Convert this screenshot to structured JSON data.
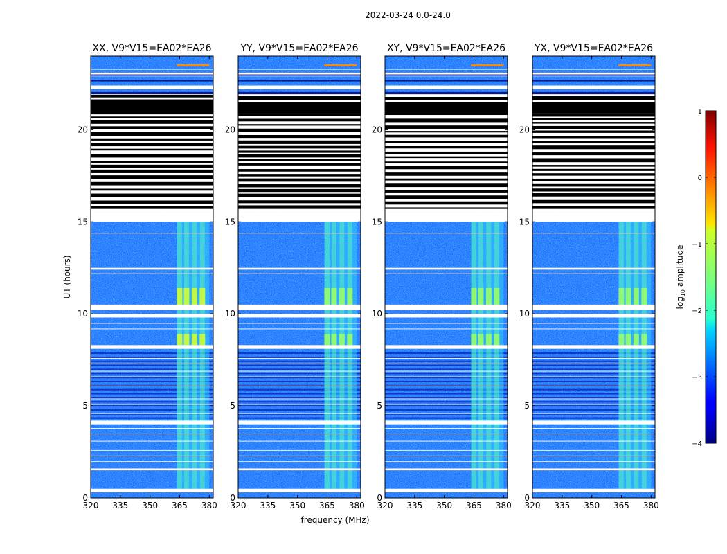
{
  "figure_title": "2022-03-24 0.0-24.0",
  "chart_data": [
    {
      "type": "heatmap",
      "title": "XX, V9*V15=EA02*EA26",
      "xlabel": "",
      "ylabel": "UT (hours)",
      "xlim": [
        320,
        382
      ],
      "ylim": [
        0,
        24
      ],
      "xticks": [
        320,
        335,
        350,
        365,
        380
      ],
      "yticks": [
        0,
        5,
        10,
        15,
        20
      ],
      "active_band_mhz": [
        363.5,
        380
      ],
      "flagged_hours": [
        [
          0.3,
          0.5
        ],
        [
          1.5,
          1.6
        ],
        [
          4.0,
          4.2
        ],
        [
          8.1,
          8.3
        ],
        [
          9.8,
          10.0
        ],
        [
          10.2,
          10.5
        ],
        [
          12.4,
          12.5
        ],
        [
          15.0,
          15.5
        ],
        [
          15.5,
          22.0
        ],
        [
          22.2,
          22.4
        ],
        [
          22.9,
          23.1
        ]
      ]
    },
    {
      "type": "heatmap",
      "title": "YY, V9*V15=EA02*EA26",
      "xlabel": "frequency (MHz)",
      "ylabel": "",
      "xlim": [
        320,
        382
      ],
      "ylim": [
        0,
        24
      ],
      "xticks": [
        320,
        335,
        350,
        365,
        380
      ],
      "yticks": [
        0,
        5,
        10,
        15,
        20
      ],
      "active_band_mhz": [
        363.5,
        380
      ],
      "flagged_hours": [
        [
          0.3,
          0.5
        ],
        [
          1.5,
          1.6
        ],
        [
          4.0,
          4.2
        ],
        [
          8.1,
          8.3
        ],
        [
          9.8,
          10.0
        ],
        [
          10.2,
          10.5
        ],
        [
          12.4,
          12.5
        ],
        [
          15.0,
          15.5
        ],
        [
          15.5,
          22.0
        ],
        [
          22.2,
          22.4
        ],
        [
          22.9,
          23.1
        ]
      ]
    },
    {
      "type": "heatmap",
      "title": "XY, V9*V15=EA02*EA26",
      "xlabel": "",
      "ylabel": "",
      "xlim": [
        320,
        382
      ],
      "ylim": [
        0,
        24
      ],
      "xticks": [
        320,
        335,
        350,
        365,
        380
      ],
      "yticks": [
        0,
        5,
        10,
        15,
        20
      ],
      "active_band_mhz": [
        363.5,
        380
      ],
      "flagged_hours": [
        [
          0.3,
          0.5
        ],
        [
          1.5,
          1.6
        ],
        [
          4.0,
          4.2
        ],
        [
          8.1,
          8.3
        ],
        [
          9.8,
          10.0
        ],
        [
          10.2,
          10.5
        ],
        [
          12.4,
          12.5
        ],
        [
          15.0,
          15.5
        ],
        [
          15.5,
          22.0
        ],
        [
          22.2,
          22.4
        ],
        [
          22.9,
          23.1
        ]
      ]
    },
    {
      "type": "heatmap",
      "title": "YX, V9*V15=EA02*EA26",
      "xlabel": "",
      "ylabel": "",
      "xlim": [
        320,
        382
      ],
      "ylim": [
        0,
        24
      ],
      "xticks": [
        320,
        335,
        350,
        365,
        380
      ],
      "yticks": [
        0,
        5,
        10,
        15,
        20
      ],
      "active_band_mhz": [
        363.5,
        380
      ],
      "flagged_hours": [
        [
          0.3,
          0.5
        ],
        [
          1.5,
          1.6
        ],
        [
          4.0,
          4.2
        ],
        [
          8.1,
          8.3
        ],
        [
          9.8,
          10.0
        ],
        [
          10.2,
          10.5
        ],
        [
          12.4,
          12.5
        ],
        [
          15.0,
          15.5
        ],
        [
          15.5,
          22.0
        ],
        [
          22.2,
          22.4
        ],
        [
          22.9,
          23.1
        ]
      ]
    }
  ],
  "colorbar": {
    "label": "log",
    "label_sub": "10",
    "label_rest": " amplitude",
    "min": -4,
    "max": 1,
    "ticks": [
      "1",
      "0",
      "−1",
      "−2",
      "−3",
      "−4"
    ],
    "colormap": "jet"
  }
}
